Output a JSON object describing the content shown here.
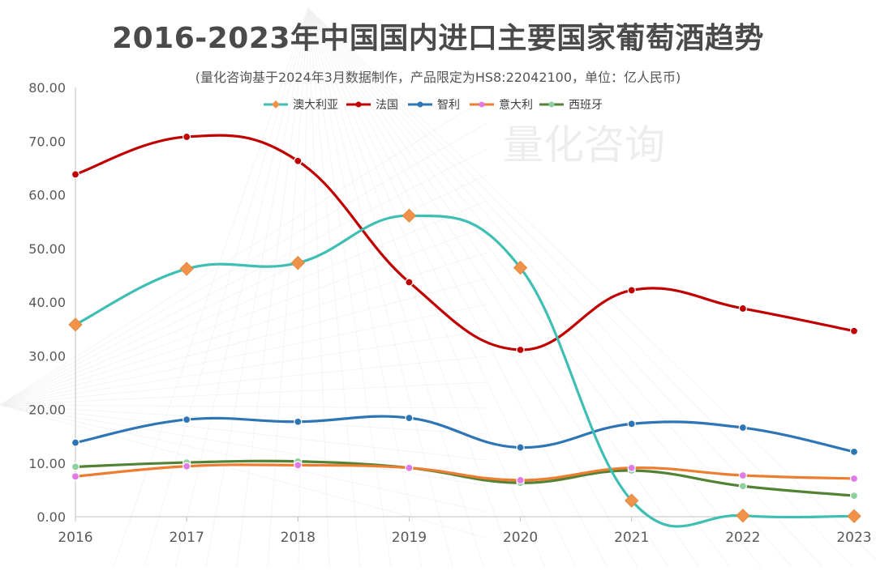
{
  "chart_data": {
    "type": "line",
    "title": "2016-2023年中国国内进口主要国家葡萄酒趋势",
    "subtitle": "(量化咨询基于2024年3月数据制作，产品限定为HS8:22042100，单位：亿人民币)",
    "watermark": "量化咨询",
    "categories": [
      "2016",
      "2017",
      "2018",
      "2019",
      "2020",
      "2021",
      "2022",
      "2023"
    ],
    "ylim": [
      0,
      80
    ],
    "yticks": [
      "0.00",
      "10.00",
      "20.00",
      "30.00",
      "40.00",
      "50.00",
      "60.00",
      "70.00",
      "80.00"
    ],
    "ytick_values": [
      0,
      10,
      20,
      30,
      40,
      50,
      60,
      70,
      80
    ],
    "legend_position": "top-center",
    "series": [
      {
        "name": "澳大利亚",
        "color": "#3fbfb3",
        "marker": "diamond",
        "marker_color": "#f0924a",
        "values": [
          35.8,
          46.2,
          47.3,
          56.1,
          46.4,
          3.0,
          0.2,
          0.1
        ]
      },
      {
        "name": "法国",
        "color": "#c00000",
        "marker": "circle",
        "marker_color": "#c00000",
        "values": [
          63.8,
          70.8,
          66.3,
          43.7,
          31.1,
          42.2,
          38.8,
          34.6
        ]
      },
      {
        "name": "智利",
        "color": "#2e75b6",
        "marker": "circle",
        "marker_color": "#2e75b6",
        "values": [
          13.8,
          18.1,
          17.7,
          18.4,
          12.9,
          17.3,
          16.6,
          12.1
        ]
      },
      {
        "name": "意大利",
        "color": "#ed7d31",
        "marker": "circle",
        "marker_color": "#e07be6",
        "values": [
          7.5,
          9.4,
          9.6,
          9.1,
          6.8,
          9.1,
          7.7,
          7.1
        ]
      },
      {
        "name": "西班牙",
        "color": "#548235",
        "marker": "circle",
        "marker_color": "#8fd19e",
        "values": [
          9.3,
          10.1,
          10.3,
          9.1,
          6.3,
          8.6,
          5.7,
          3.9
        ]
      }
    ]
  }
}
